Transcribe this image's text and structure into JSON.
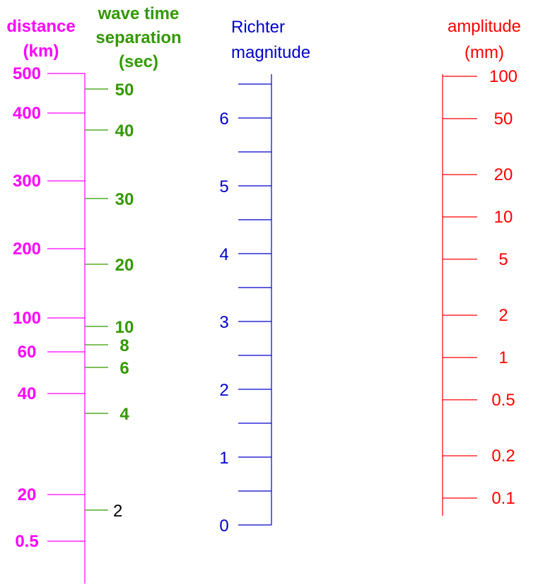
{
  "colors": {
    "distance": "#ff00ff",
    "wave": "#339900",
    "richter": "#0000cc",
    "amplitude": "#ff0000",
    "black": "#000000"
  },
  "distance_scale": {
    "title_line1": "distance",
    "title_line2": "(km)",
    "ticks": [
      {
        "label": "500",
        "value": 500
      },
      {
        "label": "400",
        "value": 400
      },
      {
        "label": "300",
        "value": 300
      },
      {
        "label": "200",
        "value": 200
      },
      {
        "label": "100",
        "value": 100
      },
      {
        "label": "60",
        "value": 60
      },
      {
        "label": "40",
        "value": 40
      },
      {
        "label": "20",
        "value": 20
      },
      {
        "label": "0.5",
        "value": 0.5
      }
    ]
  },
  "wave_scale": {
    "title_line1": "wave time",
    "title_line2": "separation",
    "title_line3": "(sec)",
    "ticks": [
      {
        "label": "50",
        "value": 50
      },
      {
        "label": "40",
        "value": 40
      },
      {
        "label": "30",
        "value": 30
      },
      {
        "label": "20",
        "value": 20
      },
      {
        "label": "10",
        "value": 10
      },
      {
        "label": "8",
        "value": 8
      },
      {
        "label": "6",
        "value": 6
      },
      {
        "label": "4",
        "value": 4
      },
      {
        "label": "2",
        "value": 2
      }
    ]
  },
  "richter_scale": {
    "title_line1": "Richter",
    "title_line2": "magnitude",
    "ticks": [
      {
        "label": "6",
        "value": 6
      },
      {
        "label": "5",
        "value": 5
      },
      {
        "label": "4",
        "value": 4
      },
      {
        "label": "3",
        "value": 3
      },
      {
        "label": "2",
        "value": 2
      },
      {
        "label": "1",
        "value": 1
      },
      {
        "label": "0",
        "value": 0
      }
    ],
    "minor_ticks": [
      6.5,
      5.5,
      4.5,
      3.5,
      2.5,
      1.5,
      0.5
    ]
  },
  "amplitude_scale": {
    "title_line1": "amplitude",
    "title_line2": "(mm)",
    "ticks": [
      {
        "label": "100",
        "value": 100
      },
      {
        "label": "50",
        "value": 50
      },
      {
        "label": "20",
        "value": 20
      },
      {
        "label": "10",
        "value": 10
      },
      {
        "label": "5",
        "value": 5
      },
      {
        "label": "2",
        "value": 2
      },
      {
        "label": "1",
        "value": 1
      },
      {
        "label": "0.5",
        "value": 0.5
      },
      {
        "label": "0.2",
        "value": 0.2
      },
      {
        "label": "0.1",
        "value": 0.1
      }
    ]
  }
}
